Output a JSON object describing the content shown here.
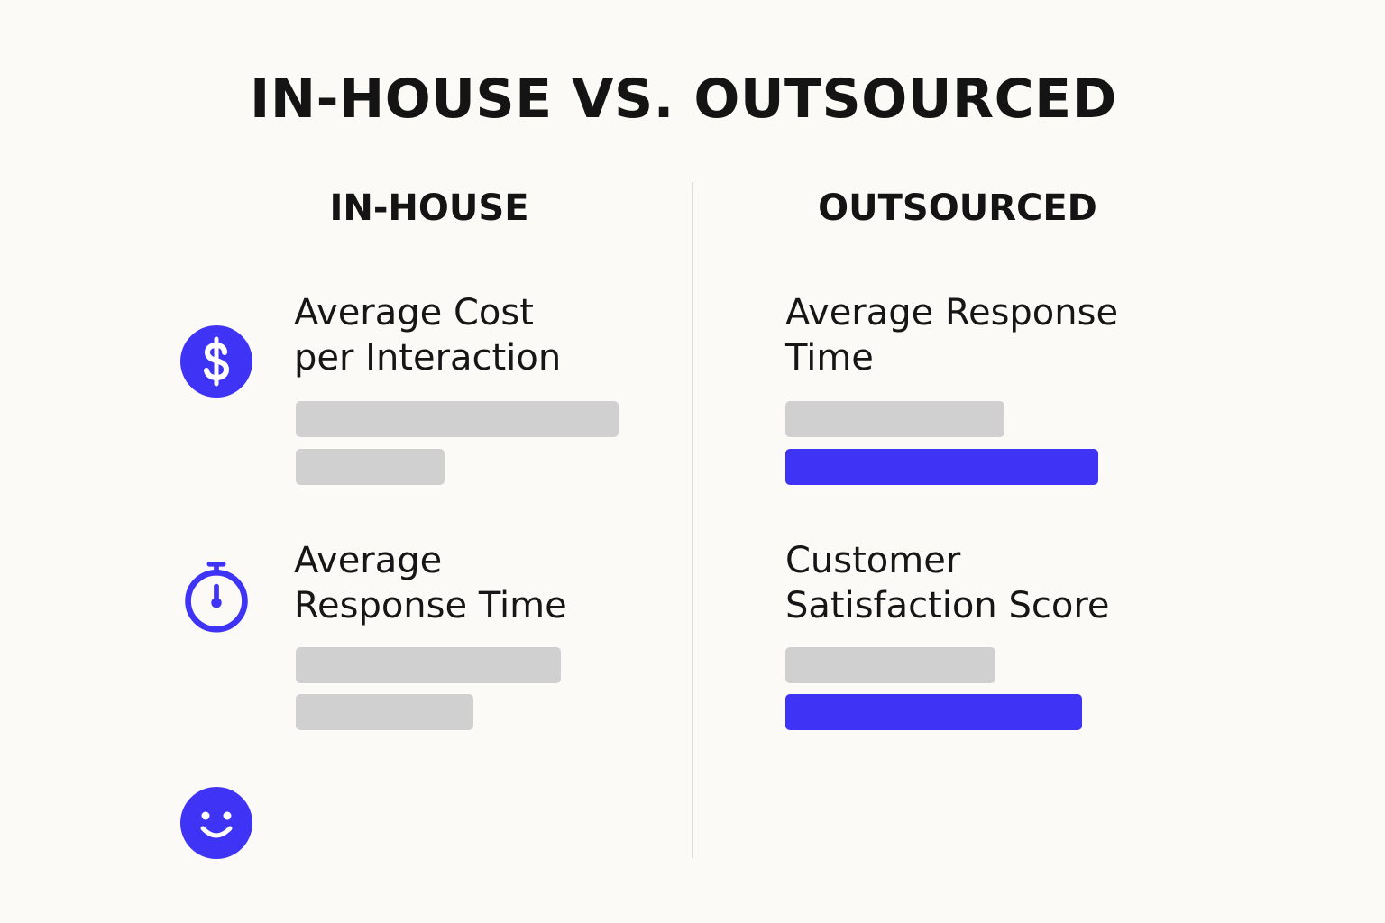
{
  "title": "IN-HOUSE VS. OUTSOURCED",
  "colors": {
    "accent": "#3f33f5",
    "bar_gray": "#d0d0d0",
    "background": "#fbfaf6",
    "divider": "#dcdcd8"
  },
  "columns": {
    "left": {
      "heading": "IN-HOUSE",
      "metrics": [
        {
          "icon": "dollar-icon",
          "label_lines": [
            "Average Cost",
            "per Interaction"
          ],
          "bars": [
            {
              "level": 1.0,
              "color": "gray"
            },
            {
              "level": 0.46,
              "color": "gray"
            }
          ]
        },
        {
          "icon": "stopwatch-icon",
          "label_lines": [
            "Average",
            "Response Time"
          ],
          "bars": [
            {
              "level": 0.82,
              "color": "gray"
            },
            {
              "level": 0.55,
              "color": "gray"
            }
          ]
        },
        {
          "icon": "smiley-icon"
        }
      ]
    },
    "right": {
      "heading": "OUTSOURCED",
      "metrics": [
        {
          "label_lines": [
            "Average Response",
            "Time"
          ],
          "bars": [
            {
              "level": 0.68,
              "color": "gray"
            },
            {
              "level": 0.97,
              "color": "accent"
            }
          ]
        },
        {
          "label_lines": [
            "Customer",
            "Satisfaction Score"
          ],
          "bars": [
            {
              "level": 0.65,
              "color": "gray"
            },
            {
              "level": 0.92,
              "color": "accent"
            }
          ]
        }
      ]
    }
  }
}
